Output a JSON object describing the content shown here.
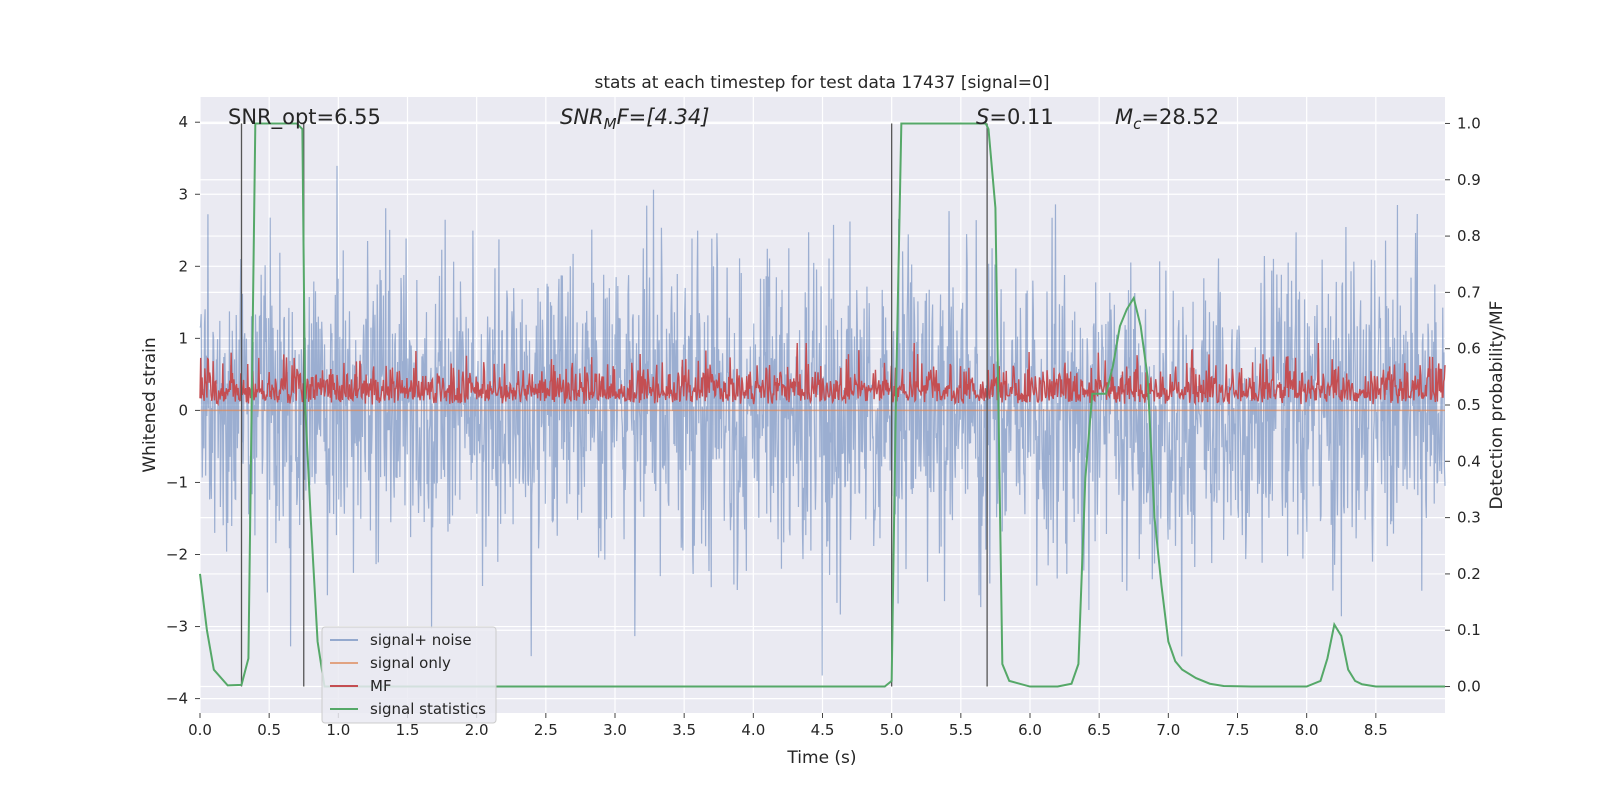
{
  "chart_data": {
    "type": "line",
    "title": "stats at each timestep for test data 17437 [signal=0]",
    "xlabel": "Time (s)",
    "ylabel": "Whitened strain",
    "y2label": "Detection probability/MF",
    "xlim": [
      0,
      9.0
    ],
    "ylim": [
      -4.2,
      4.35
    ],
    "y2lim": [
      -0.047,
      1.047
    ],
    "x_ticks": [
      0.0,
      0.5,
      1.0,
      1.5,
      2.0,
      2.5,
      3.0,
      3.5,
      4.0,
      4.5,
      5.0,
      5.5,
      6.0,
      6.5,
      7.0,
      7.5,
      8.0,
      8.5
    ],
    "x_tick_labels": [
      "0.0",
      "0.5",
      "1.0",
      "1.5",
      "2.0",
      "2.5",
      "3.0",
      "3.5",
      "4.0",
      "4.5",
      "5.0",
      "5.5",
      "6.0",
      "6.5",
      "7.0",
      "7.5",
      "8.0",
      "8.5"
    ],
    "y_ticks": [
      4,
      3,
      2,
      1,
      0,
      -1,
      -2,
      -3,
      -4
    ],
    "y_tick_labels": [
      "4",
      "3",
      "2",
      "1",
      "0",
      "−1",
      "−2",
      "−3",
      "−4"
    ],
    "y2_ticks": [
      1.0,
      0.9,
      0.8,
      0.7,
      0.6,
      0.5,
      0.4,
      0.3,
      0.2,
      0.1,
      0.0
    ],
    "y2_tick_labels": [
      "1.0",
      "0.9",
      "0.8",
      "0.7",
      "0.6",
      "0.5",
      "0.4",
      "0.3",
      "0.2",
      "0.1",
      "0.0"
    ],
    "grid": true,
    "legend_position": "lower-left",
    "annotations": {
      "snr_opt": "SNR_opt=6.55",
      "snr_mf_name": "SNR",
      "snr_mf_sub": "M",
      "snr_mf_tail": "F=[4.34]",
      "s_name": "S",
      "s_tail": "=0.11",
      "mc_name": "M",
      "mc_sub": "c",
      "mc_tail": "=28.52"
    },
    "series": [
      {
        "name": "signal+ noise",
        "color": "#4c72b0",
        "style": "dense noise band, whitened strain",
        "envelope": [
          -3.7,
          4.0
        ]
      },
      {
        "name": "signal only",
        "color": "#dd8452",
        "x": [
          0.0,
          9.0
        ],
        "y": [
          0.0,
          0.0
        ]
      },
      {
        "name": "MF",
        "color": "#c44e52",
        "style": "noisy trace on right axis",
        "baseline": 0.52,
        "envelope": [
          0.5,
          0.61
        ]
      },
      {
        "name": "signal statistics",
        "color": "#55a868",
        "axis": "right",
        "x": [
          0.0,
          0.05,
          0.1,
          0.2,
          0.3,
          0.35,
          0.4,
          0.5,
          0.6,
          0.7,
          0.74,
          0.76,
          0.8,
          0.85,
          0.9,
          4.95,
          5.0,
          5.03,
          5.07,
          5.5,
          5.68,
          5.7,
          5.75,
          5.8,
          5.85,
          6.0,
          6.2,
          6.3,
          6.35,
          6.4,
          6.45,
          6.5,
          6.55,
          6.6,
          6.65,
          6.7,
          6.75,
          6.8,
          6.85,
          6.9,
          6.95,
          7.0,
          7.05,
          7.1,
          7.2,
          7.3,
          7.4,
          7.6,
          8.0,
          8.1,
          8.15,
          8.2,
          8.25,
          8.3,
          8.35,
          8.4,
          8.5,
          9.0
        ],
        "y": [
          0.2,
          0.1,
          0.03,
          0.002,
          0.003,
          0.05,
          1.0,
          1.0,
          1.0,
          1.0,
          0.99,
          0.5,
          0.3,
          0.08,
          0.0,
          0.0,
          0.01,
          0.5,
          1.0,
          1.0,
          1.0,
          0.99,
          0.85,
          0.04,
          0.01,
          0.0,
          0.0,
          0.005,
          0.04,
          0.37,
          0.52,
          0.52,
          0.52,
          0.57,
          0.64,
          0.67,
          0.69,
          0.64,
          0.55,
          0.3,
          0.18,
          0.08,
          0.045,
          0.03,
          0.015,
          0.005,
          0.001,
          0.0,
          0.0,
          0.01,
          0.05,
          0.11,
          0.09,
          0.03,
          0.01,
          0.004,
          0.0,
          0.0
        ]
      }
    ],
    "vertical_markers": [
      0.3,
      0.75,
      5.0,
      5.69
    ]
  }
}
